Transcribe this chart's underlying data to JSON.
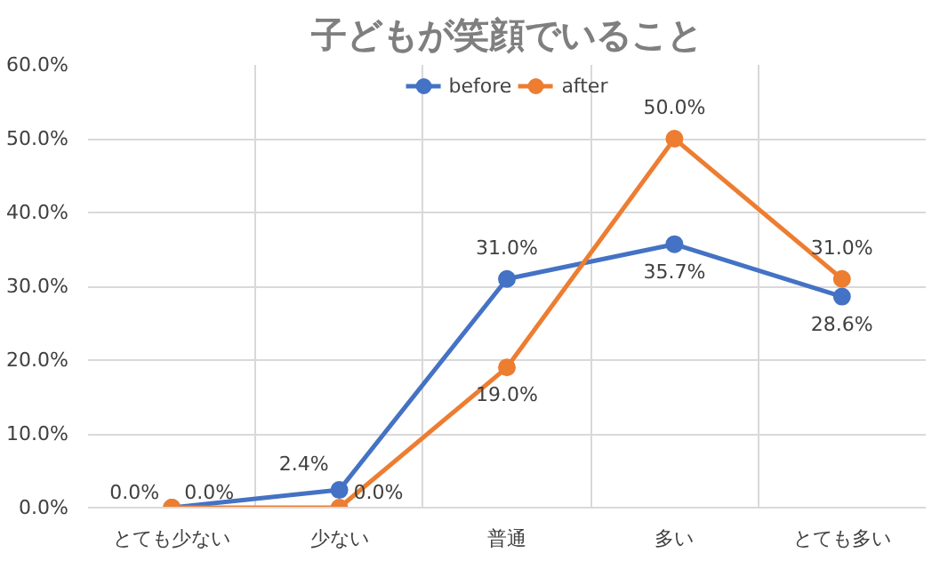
{
  "chart_data": {
    "type": "line",
    "title": "子どもが笑顔でいること",
    "categories": [
      "とても少ない",
      "少ない",
      "普通",
      "多い",
      "とても多い"
    ],
    "series": [
      {
        "name": "before",
        "color": "#4472c4",
        "values": [
          0.0,
          2.4,
          31.0,
          35.7,
          28.6
        ],
        "value_labels": [
          "0.0%",
          "2.4%",
          "31.0%",
          "35.7%",
          "28.6%"
        ]
      },
      {
        "name": "after",
        "color": "#ed7d31",
        "values": [
          0.0,
          0.0,
          19.0,
          50.0,
          31.0
        ],
        "value_labels": [
          "0.0%",
          "0.0%",
          "19.0%",
          "50.0%",
          "31.0%"
        ]
      }
    ],
    "ylim": [
      0,
      60
    ],
    "yticks": [
      {
        "value": 0,
        "label": "0.0%"
      },
      {
        "value": 10,
        "label": "10.0%"
      },
      {
        "value": 20,
        "label": "20.0%"
      },
      {
        "value": 30,
        "label": "30.0%"
      },
      {
        "value": 40,
        "label": "40.0%"
      },
      {
        "value": 50,
        "label": "50.0%"
      },
      {
        "value": 60,
        "label": "60.0%"
      }
    ],
    "grid": true,
    "legend": "top",
    "marker": "circle",
    "line_style": "solid"
  }
}
